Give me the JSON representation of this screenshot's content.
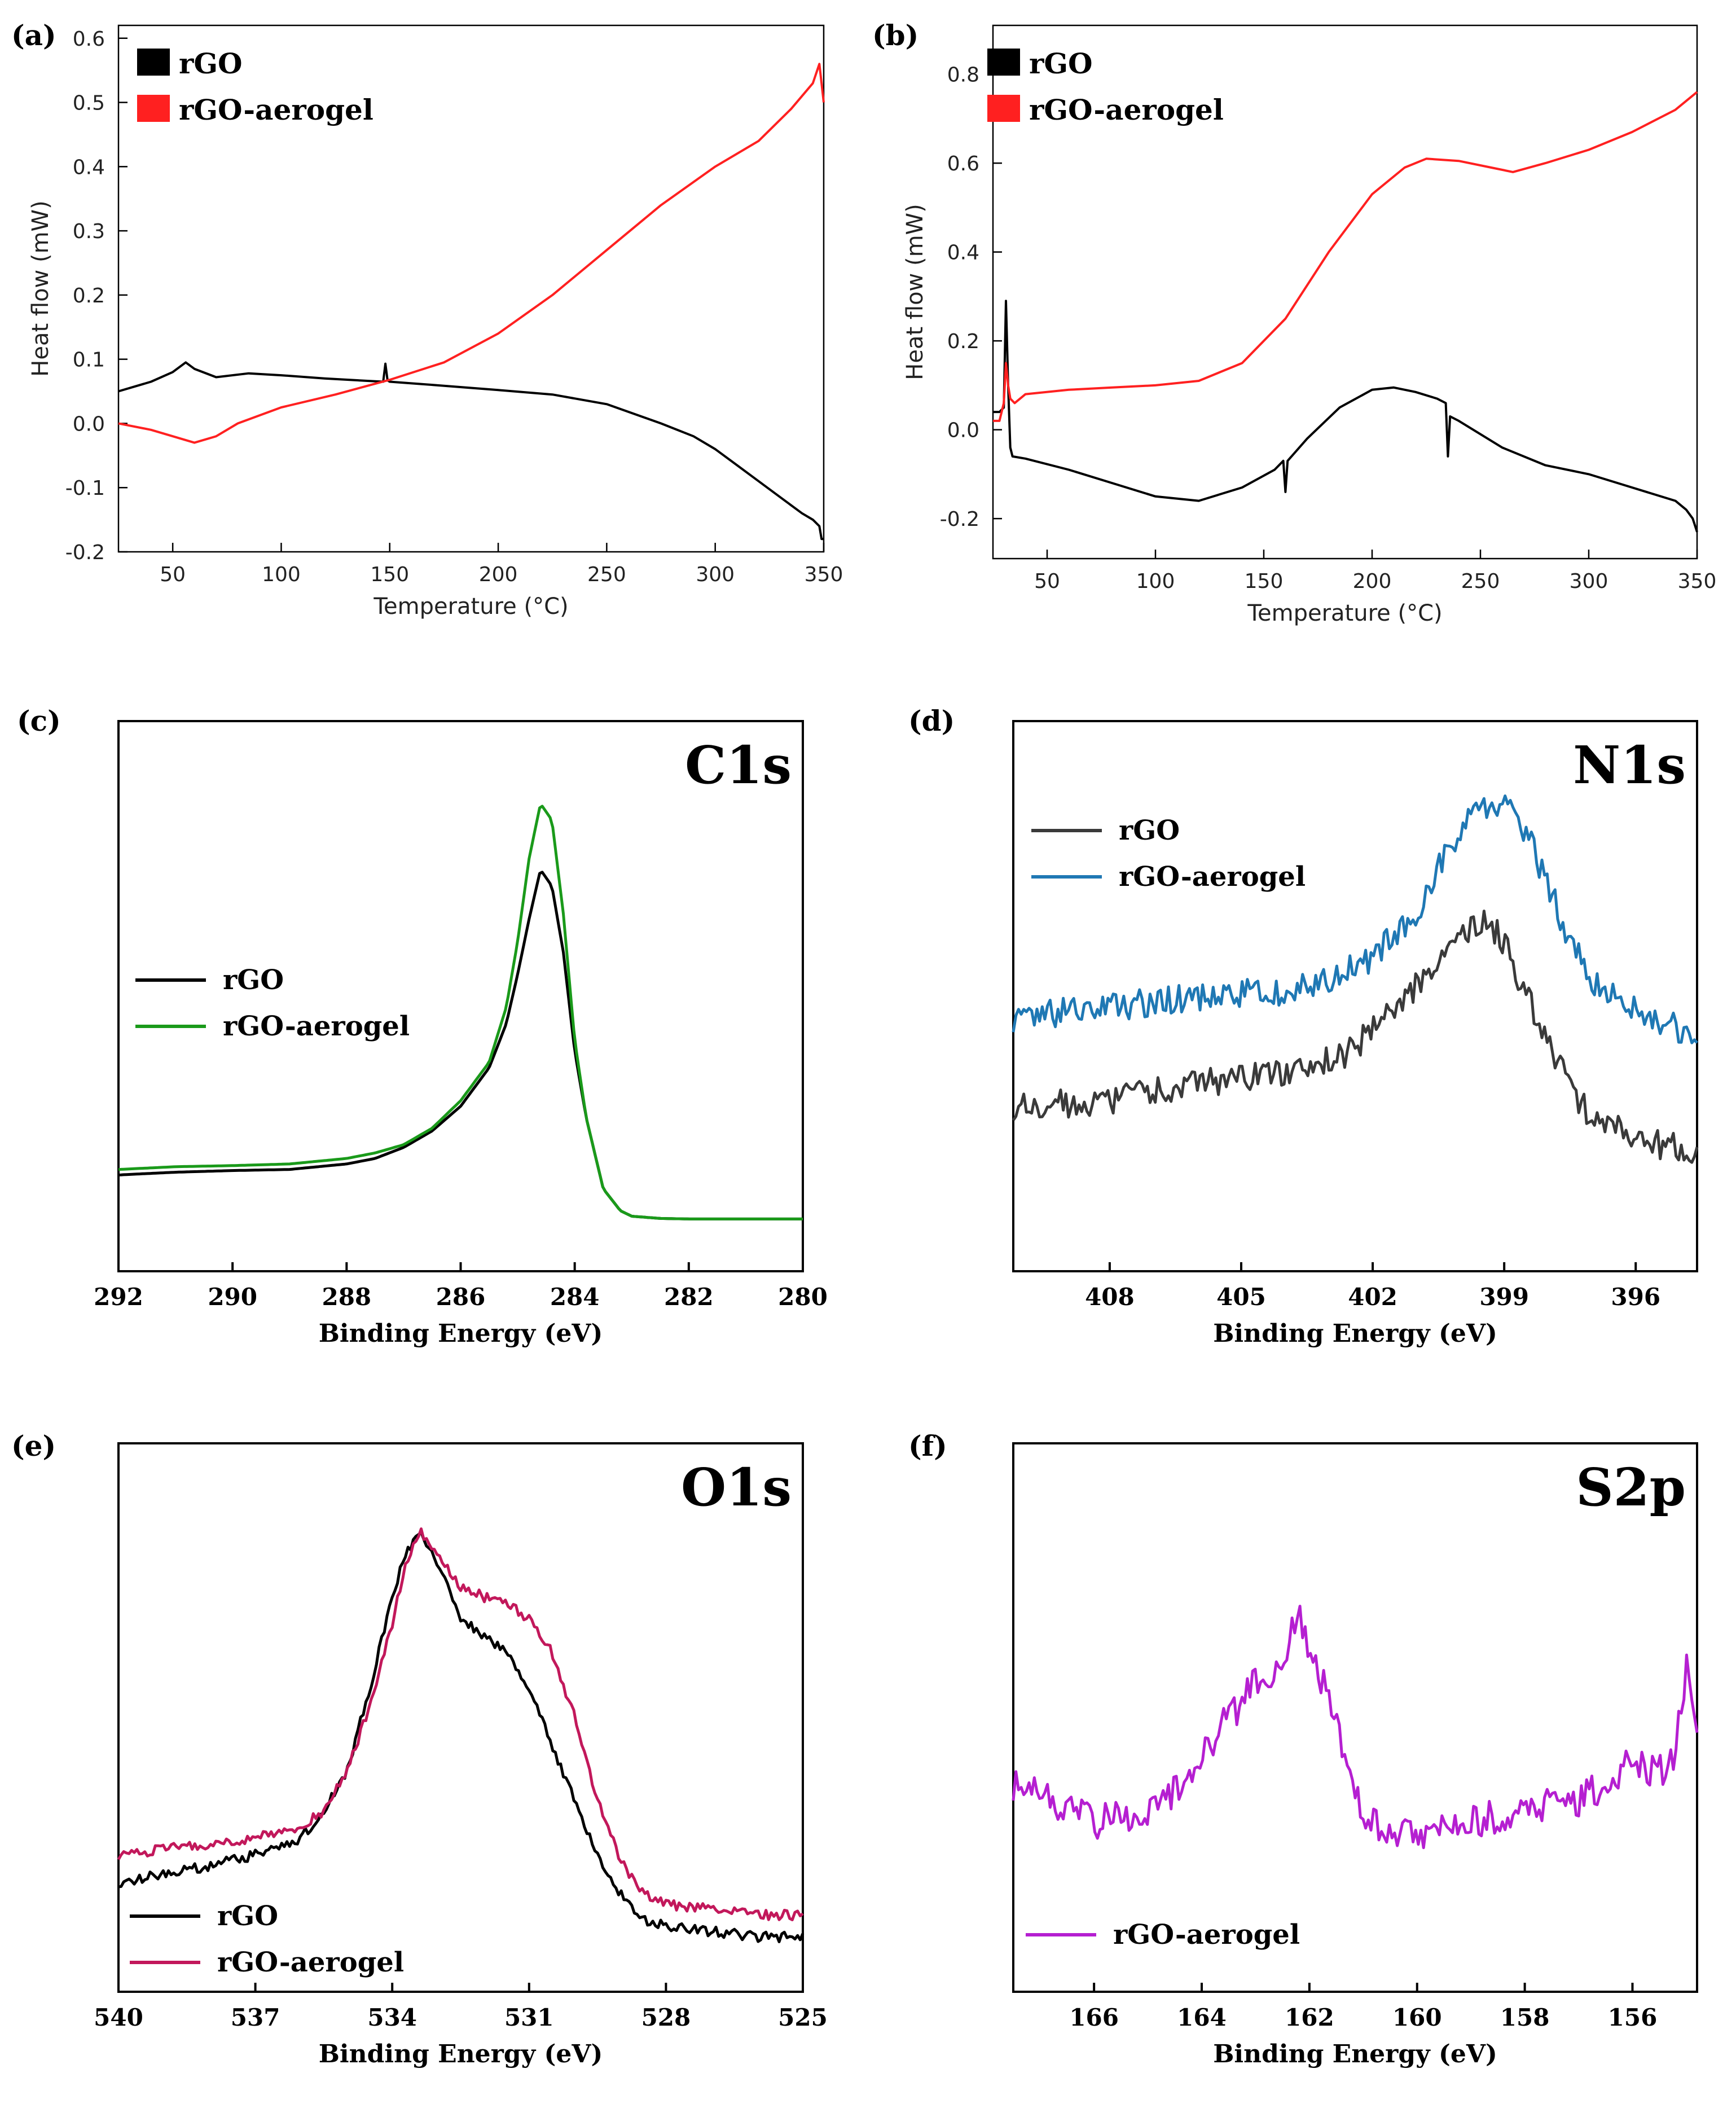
{
  "chart_data": [
    {
      "panel": "(a)",
      "type": "line",
      "xlabel": "Temperature (°C)",
      "ylabel": "Heat flow (mW)",
      "xlim": [
        25,
        350
      ],
      "ylim": [
        -0.2,
        0.62
      ],
      "xticks": [
        50,
        100,
        150,
        200,
        250,
        300,
        350
      ],
      "yticks": [
        -0.2,
        -0.1,
        0.0,
        0.1,
        0.2,
        0.3,
        0.4,
        0.5,
        0.6
      ],
      "ytick_labels": [
        "-0.2",
        "-0.1",
        "0.0",
        "0.1",
        "0.2",
        "0.3",
        "0.4",
        "0.5",
        "0.6"
      ],
      "legend_style": "box",
      "series": [
        {
          "name": "rGO",
          "color": "#000000",
          "x": [
            25,
            40,
            50,
            56,
            60,
            70,
            85,
            100,
            120,
            147,
            148,
            149,
            150,
            170,
            200,
            225,
            250,
            275,
            290,
            300,
            310,
            320,
            330,
            340,
            345,
            348,
            349,
            350
          ],
          "y": [
            0.05,
            0.065,
            0.08,
            0.095,
            0.085,
            0.072,
            0.078,
            0.075,
            0.07,
            0.065,
            0.093,
            0.067,
            0.065,
            0.06,
            0.052,
            0.045,
            0.03,
            0.0,
            -0.02,
            -0.04,
            -0.065,
            -0.09,
            -0.115,
            -0.14,
            -0.15,
            -0.16,
            -0.18,
            -0.18
          ]
        },
        {
          "name": "rGO-aerogel",
          "color": "#ff2020",
          "x": [
            25,
            40,
            50,
            60,
            70,
            80,
            100,
            125,
            150,
            175,
            200,
            225,
            250,
            275,
            300,
            320,
            335,
            345,
            348,
            350
          ],
          "y": [
            0.0,
            -0.01,
            -0.02,
            -0.03,
            -0.02,
            0.0,
            0.025,
            0.045,
            0.068,
            0.095,
            0.14,
            0.2,
            0.27,
            0.34,
            0.4,
            0.44,
            0.49,
            0.53,
            0.56,
            0.5
          ]
        }
      ]
    },
    {
      "panel": "(b)",
      "type": "line",
      "xlabel": "Temperature (°C)",
      "ylabel": "Heat flow (mW)",
      "xlim": [
        25,
        350
      ],
      "ylim": [
        -0.29,
        0.91
      ],
      "xticks": [
        50,
        100,
        150,
        200,
        250,
        300,
        350
      ],
      "yticks": [
        -0.2,
        0.0,
        0.2,
        0.4,
        0.6,
        0.8
      ],
      "ytick_labels": [
        "-0.2",
        "0.0",
        "0.2",
        "0.4",
        "0.6",
        "0.8"
      ],
      "legend_style": "box",
      "series": [
        {
          "name": "rGO",
          "color": "#000000",
          "x": [
            25,
            28,
            30,
            31,
            32,
            33,
            34,
            40,
            60,
            80,
            100,
            120,
            140,
            155,
            159,
            160,
            161,
            170,
            185,
            200,
            210,
            220,
            230,
            234,
            235,
            236,
            240,
            260,
            280,
            300,
            320,
            340,
            345,
            348,
            350
          ],
          "y": [
            0.04,
            0.04,
            0.05,
            0.29,
            0.1,
            -0.04,
            -0.06,
            -0.065,
            -0.09,
            -0.12,
            -0.15,
            -0.16,
            -0.13,
            -0.09,
            -0.07,
            -0.14,
            -0.07,
            -0.02,
            0.05,
            0.09,
            0.095,
            0.085,
            0.07,
            0.06,
            -0.06,
            0.03,
            0.02,
            -0.04,
            -0.08,
            -0.1,
            -0.13,
            -0.16,
            -0.18,
            -0.2,
            -0.23
          ]
        },
        {
          "name": "rGO-aerogel",
          "color": "#ff2020",
          "x": [
            25,
            28,
            30,
            31,
            32,
            33,
            35,
            40,
            60,
            80,
            100,
            120,
            140,
            160,
            180,
            200,
            215,
            225,
            240,
            255,
            265,
            280,
            300,
            320,
            340,
            350
          ],
          "y": [
            0.02,
            0.02,
            0.06,
            0.15,
            0.1,
            0.07,
            0.06,
            0.08,
            0.09,
            0.095,
            0.1,
            0.11,
            0.15,
            0.25,
            0.4,
            0.53,
            0.59,
            0.61,
            0.605,
            0.59,
            0.58,
            0.6,
            0.63,
            0.67,
            0.72,
            0.76
          ]
        }
      ]
    },
    {
      "panel": "(c)",
      "type": "line",
      "title": "C1s",
      "xlabel": "Binding Energy (eV)",
      "xlim": [
        292,
        280
      ],
      "ylim": [
        0,
        100
      ],
      "xticks": [
        292,
        290,
        288,
        286,
        284,
        282,
        280
      ],
      "legend_style": "line",
      "series": [
        {
          "name": "rGO",
          "color": "#000000",
          "x": [
            292,
            291,
            290,
            289,
            288,
            287.5,
            287,
            286.5,
            286,
            285.5,
            285.2,
            285,
            284.8,
            284.6,
            284.4,
            284.2,
            284,
            283.8,
            283.5,
            283.2,
            283,
            282.5,
            282,
            281,
            280
          ],
          "y": [
            17.5,
            18,
            18.3,
            18.5,
            19.5,
            20.5,
            22.5,
            25.5,
            30,
            37,
            45,
            54,
            64,
            73,
            70,
            58,
            40,
            28,
            15,
            11,
            10,
            9.6,
            9.5,
            9.5,
            9.5
          ]
        },
        {
          "name": "rGO-aerogel",
          "color": "#1a9a1a",
          "x": [
            292,
            291,
            290,
            289,
            288,
            287.5,
            287,
            286.5,
            286,
            285.5,
            285.2,
            285,
            284.8,
            284.6,
            284.4,
            284.2,
            284,
            283.8,
            283.5,
            283.2,
            283,
            282.5,
            282,
            281,
            280
          ],
          "y": [
            18.5,
            19,
            19.2,
            19.5,
            20.5,
            21.5,
            23,
            26,
            31,
            38,
            48,
            60,
            75,
            85,
            82,
            65,
            42,
            28,
            15,
            11,
            10,
            9.6,
            9.5,
            9.5,
            9.5
          ]
        }
      ]
    },
    {
      "panel": "(d)",
      "type": "line",
      "title": "N1s",
      "xlabel": "Binding Energy (eV)",
      "xlim": [
        410.2,
        394.6
      ],
      "ylim": [
        0,
        100
      ],
      "xticks": [
        408,
        405,
        402,
        399,
        396
      ],
      "legend_style": "line",
      "series": [
        {
          "name": "rGO",
          "color": "#3a3a3a",
          "x": [
            410.2,
            408,
            406,
            404,
            402.5,
            401.5,
            400.5,
            399.5,
            399,
            398.5,
            398,
            397.5,
            397,
            396.5,
            396,
            395.5,
            394.6
          ],
          "y": [
            30,
            31,
            34,
            36,
            40,
            48,
            56,
            64,
            60,
            50,
            42,
            33,
            28,
            26,
            24,
            23,
            22
          ]
        },
        {
          "name": "rGO-aerogel",
          "color": "#1f78b4",
          "x": [
            410.2,
            408,
            406,
            404,
            403,
            402,
            401,
            400.5,
            400,
            399.5,
            399,
            398.5,
            398,
            397.5,
            397,
            396.5,
            396,
            395.5,
            394.6
          ],
          "y": [
            46,
            48,
            50,
            51,
            53,
            57,
            65,
            74,
            80,
            84,
            85,
            80,
            70,
            60,
            53,
            50,
            48,
            46,
            42
          ]
        }
      ]
    },
    {
      "panel": "(e)",
      "type": "line",
      "title": "O1s",
      "xlabel": "Binding Energy (eV)",
      "xlim": [
        540,
        525
      ],
      "ylim": [
        0,
        100
      ],
      "xticks": [
        540,
        537,
        534,
        531,
        528,
        525
      ],
      "legend_style": "line",
      "series": [
        {
          "name": "rGO",
          "color": "#000000",
          "x": [
            540,
            538,
            537,
            536,
            535.5,
            535,
            534.5,
            534,
            533.7,
            533.4,
            533,
            532.5,
            532,
            531.5,
            531,
            530.5,
            530,
            529.5,
            529,
            528.5,
            528,
            527,
            526,
            525
          ],
          "y": [
            20,
            23,
            25,
            28,
            33,
            40,
            55,
            72,
            80,
            84,
            78,
            68,
            65,
            62,
            55,
            45,
            35,
            25,
            18,
            13,
            12,
            11,
            10,
            10
          ]
        },
        {
          "name": "rGO-aerogel",
          "color": "#c2185b",
          "x": [
            540,
            538,
            537,
            536,
            535.5,
            535,
            534.5,
            534,
            533.7,
            533.4,
            533,
            532.5,
            532,
            531.5,
            531,
            530.5,
            530,
            529.5,
            529,
            528.5,
            528,
            527,
            526,
            525
          ],
          "y": [
            25,
            27,
            28,
            30,
            33,
            40,
            52,
            67,
            78,
            84,
            80,
            74,
            72,
            71,
            68,
            62,
            50,
            35,
            24,
            18,
            16,
            15,
            14,
            14
          ]
        }
      ]
    },
    {
      "panel": "(f)",
      "type": "line",
      "title": "S2p",
      "xlabel": "Binding Energy (eV)",
      "xlim": [
        167.5,
        154.8
      ],
      "ylim": [
        0,
        100
      ],
      "xticks": [
        166,
        164,
        162,
        160,
        158,
        156
      ],
      "legend_style": "line",
      "series": [
        {
          "name": "rGO-aerogel",
          "color": "#b51fd1",
          "x": [
            167.5,
            166.5,
            166,
            165,
            164.5,
            164,
            163.5,
            163,
            162.7,
            162.5,
            162.2,
            162,
            161.7,
            161.5,
            161.2,
            161,
            160.5,
            160,
            159.5,
            159,
            158,
            157,
            156.5,
            156,
            155.5,
            155.2,
            155,
            154.8
          ],
          "y": [
            38,
            33,
            31,
            33,
            37,
            43,
            50,
            56,
            58,
            60,
            70,
            62,
            55,
            48,
            40,
            32,
            30,
            28,
            30,
            31,
            33,
            35,
            38,
            42,
            40,
            44,
            60,
            50
          ]
        }
      ]
    }
  ]
}
